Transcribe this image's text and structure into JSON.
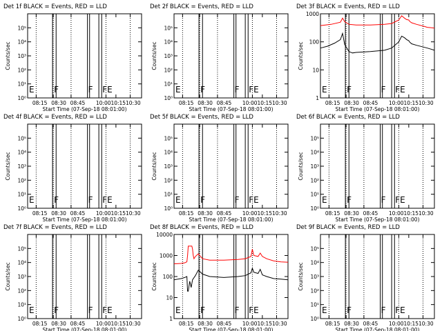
{
  "chart_data": [
    {
      "type": "line",
      "title": "Det 1f BLACK = Events, RED = LLD",
      "xlabel": "Start Time (07-Sep-18 08:01:00)",
      "ylabel": "Counts/sec",
      "yscale": "log",
      "ylim": [
        1,
        1000000
      ],
      "ytick_labels": [
        "10^0",
        "10^1",
        "10^2",
        "10^3",
        "10^4",
        "10^5"
      ],
      "xlim_minutes": [
        0,
        160
      ],
      "xtick_labels": [
        "08:15",
        "08:30",
        "08:45",
        "10:00",
        "10:15",
        "10:30"
      ],
      "flag_labels": [
        "E",
        "F",
        "F",
        "FE"
      ],
      "series": []
    },
    {
      "type": "line",
      "title": "Det 2f BLACK = Events, RED = LLD",
      "xlabel": "Start Time (07-Sep-18 08:01:00)",
      "ylabel": "Counts/sec",
      "yscale": "log",
      "ylim": [
        1,
        1000000
      ],
      "ytick_labels": [
        "10^0",
        "10^1",
        "10^2",
        "10^3",
        "10^4",
        "10^5"
      ],
      "xlim_minutes": [
        0,
        160
      ],
      "xtick_labels": [
        "08:15",
        "08:30",
        "08:45",
        "10:00",
        "10:15",
        "10:30"
      ],
      "flag_labels": [
        "E",
        "F",
        "F",
        "FE"
      ],
      "series": []
    },
    {
      "type": "line",
      "title": "Det 3f BLACK = Events, RED = LLD",
      "xlabel": "Start Time (07-Sep-18 08:01:00)",
      "ylabel": "Counts/sec",
      "yscale": "log",
      "ylim": [
        1,
        1000
      ],
      "ytick_labels": [
        "1",
        "10",
        "100",
        "1000"
      ],
      "xlim_minutes": [
        0,
        160
      ],
      "xtick_labels": [
        "08:15",
        "08:30",
        "08:45",
        "10:00",
        "10:15",
        "10:30"
      ],
      "flag_labels": [
        "E",
        "F",
        "F",
        "FE"
      ],
      "series": [
        {
          "color": "#ff0000",
          "x": [
            0,
            15,
            28,
            31,
            34,
            40,
            50,
            70,
            90,
            100,
            110,
            114,
            118,
            121,
            124,
            125,
            126,
            128,
            135,
            145,
            150,
            155,
            160
          ],
          "y": [
            380,
            420,
            500,
            700,
            520,
            420,
            400,
            400,
            420,
            450,
            600,
            850,
            700,
            620,
            600,
            550,
            520,
            480,
            420,
            360,
            330,
            320,
            310
          ]
        },
        {
          "color": "#000000",
          "x": [
            0,
            10,
            20,
            28,
            31,
            34,
            40,
            45,
            50,
            70,
            90,
            100,
            110,
            114,
            118,
            121,
            124,
            125,
            126,
            128,
            135,
            145,
            150,
            155,
            160
          ],
          "y": [
            60,
            70,
            90,
            120,
            200,
            80,
            45,
            40,
            42,
            45,
            50,
            60,
            100,
            160,
            140,
            120,
            110,
            100,
            95,
            85,
            75,
            65,
            60,
            55,
            50
          ]
        }
      ]
    },
    {
      "type": "line",
      "title": "Det 4f BLACK = Events, RED = LLD",
      "xlabel": "Start Time (07-Sep-18 08:01:00)",
      "ylabel": "Counts/sec",
      "yscale": "log",
      "ylim": [
        1,
        1000000
      ],
      "ytick_labels": [
        "10^0",
        "10^1",
        "10^2",
        "10^3",
        "10^4",
        "10^5"
      ],
      "xlim_minutes": [
        0,
        160
      ],
      "xtick_labels": [
        "08:15",
        "08:30",
        "08:45",
        "10:00",
        "10:15",
        "10:30"
      ],
      "flag_labels": [
        "E",
        "F",
        "F",
        "FE"
      ],
      "series": []
    },
    {
      "type": "line",
      "title": "Det 5f BLACK = Events, RED = LLD",
      "xlabel": "Start Time (07-Sep-18 08:01:00)",
      "ylabel": "Counts/sec",
      "yscale": "log",
      "ylim": [
        1,
        1000000
      ],
      "ytick_labels": [
        "10^0",
        "10^1",
        "10^2",
        "10^3",
        "10^4",
        "10^5"
      ],
      "xlim_minutes": [
        0,
        160
      ],
      "xtick_labels": [
        "08:15",
        "08:30",
        "08:45",
        "10:00",
        "10:15",
        "10:30"
      ],
      "flag_labels": [
        "E",
        "F",
        "F",
        "FE"
      ],
      "series": []
    },
    {
      "type": "line",
      "title": "Det 6f BLACK = Events, RED = LLD",
      "xlabel": "Start Time (07-Sep-18 08:01:00)",
      "ylabel": "Counts/sec",
      "yscale": "log",
      "ylim": [
        1,
        1000000
      ],
      "ytick_labels": [
        "10^0",
        "10^1",
        "10^2",
        "10^3",
        "10^4",
        "10^5"
      ],
      "xlim_minutes": [
        0,
        160
      ],
      "xtick_labels": [
        "08:15",
        "08:30",
        "08:45",
        "10:00",
        "10:15",
        "10:30"
      ],
      "flag_labels": [
        "E",
        "F",
        "F",
        "FE"
      ],
      "series": []
    },
    {
      "type": "line",
      "title": "Det 7f BLACK = Events, RED = LLD",
      "xlabel": "Start Time (07-Sep-18 08:01:00)",
      "ylabel": "Counts/sec",
      "yscale": "log",
      "ylim": [
        1,
        1000000
      ],
      "ytick_labels": [
        "10^0",
        "10^1",
        "10^2",
        "10^3",
        "10^4",
        "10^5"
      ],
      "xlim_minutes": [
        0,
        160
      ],
      "xtick_labels": [
        "08:15",
        "08:30",
        "08:45",
        "10:00",
        "10:15",
        "10:30"
      ],
      "flag_labels": [
        "E",
        "F",
        "F",
        "FE"
      ],
      "series": []
    },
    {
      "type": "line",
      "title": "Det 8f BLACK = Events, RED = LLD",
      "xlabel": "Start Time (07-Sep-18 08:01:00)",
      "ylabel": "Counts/sec",
      "yscale": "log",
      "ylim": [
        1,
        10000
      ],
      "ytick_labels": [
        "1",
        "10",
        "100",
        "1000",
        "10000"
      ],
      "xlim_minutes": [
        0,
        160
      ],
      "xtick_labels": [
        "08:15",
        "08:30",
        "08:45",
        "10:00",
        "10:15",
        "10:30"
      ],
      "flag_labels": [
        "E",
        "F",
        "F",
        "FE"
      ],
      "series": [
        {
          "color": "#ff0000",
          "x": [
            0,
            10,
            15,
            18,
            19,
            20,
            25,
            26,
            27,
            28,
            30,
            34,
            40,
            50,
            70,
            90,
            100,
            108,
            110,
            112,
            118,
            121,
            124,
            130,
            140,
            150,
            160
          ],
          "y": [
            400,
            420,
            450,
            500,
            1000,
            2800,
            2800,
            2000,
            1000,
            700,
            900,
            1200,
            700,
            600,
            600,
            650,
            700,
            900,
            2000,
            1000,
            900,
            1300,
            900,
            700,
            550,
            500,
            480
          ]
        },
        {
          "color": "#000000",
          "x": [
            0,
            10,
            15,
            18,
            19,
            20,
            22,
            24,
            26,
            30,
            34,
            40,
            50,
            70,
            90,
            100,
            108,
            110,
            112,
            118,
            121,
            124,
            130,
            140,
            150,
            160
          ],
          "y": [
            70,
            80,
            90,
            100,
            20,
            20,
            60,
            30,
            70,
            110,
            200,
            130,
            100,
            90,
            100,
            110,
            150,
            250,
            160,
            140,
            220,
            120,
            100,
            80,
            75,
            70
          ]
        }
      ]
    },
    {
      "type": "line",
      "title": "Det 9f BLACK = Events, RED = LLD",
      "xlabel": "Start Time (07-Sep-18 08:01:00)",
      "ylabel": "Counts/sec",
      "yscale": "log",
      "ylim": [
        1,
        1000000
      ],
      "ytick_labels": [
        "10^0",
        "10^1",
        "10^2",
        "10^3",
        "10^4",
        "10^5"
      ],
      "xlim_minutes": [
        0,
        160
      ],
      "xtick_labels": [
        "08:15",
        "08:30",
        "08:45",
        "10:00",
        "10:15",
        "10:30"
      ],
      "flag_labels": [
        "E",
        "F",
        "F",
        "FE"
      ],
      "series": []
    }
  ]
}
